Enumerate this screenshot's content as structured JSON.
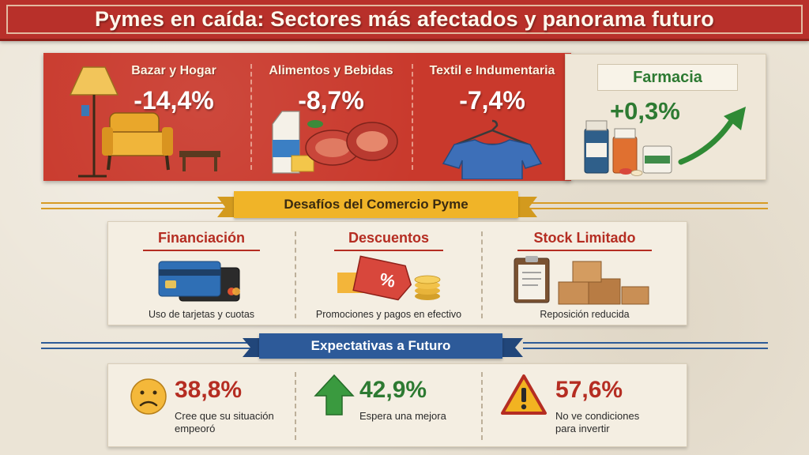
{
  "title": "Pymes en caída: Sectores más afectados y panorama futuro",
  "colors": {
    "brand_red": "#b8302a",
    "decline_text": "#ffffff",
    "growth_green": "#2d7a32",
    "ribbon_gold": "#f0b428",
    "ribbon_blue": "#2d5a99"
  },
  "sectors": [
    {
      "label": "Bazar y Hogar",
      "value": "-14,4%",
      "icon": "armchair-lamp-icon"
    },
    {
      "label": "Alimentos y Bebidas",
      "value": "-8,7%",
      "icon": "milk-meat-icon"
    },
    {
      "label": "Textil e Indumentaria",
      "value": "-7,4%",
      "icon": "tshirt-hanger-icon"
    }
  ],
  "pharmacy": {
    "label": "Farmacia",
    "value": "+0,3%",
    "icon": "medicine-bottles-icon",
    "trend_icon": "arrow-up-icon"
  },
  "challenges": {
    "heading": "Desafíos del Comercio Pyme",
    "items": [
      {
        "title": "Financiación",
        "desc": "Uso de tarjetas y cuotas",
        "icon": "credit-cards-icon"
      },
      {
        "title": "Descuentos",
        "desc": "Promociones y pagos en efectivo",
        "icon": "discount-tag-icon"
      },
      {
        "title": "Stock Limitado",
        "desc": "Reposición reducida",
        "icon": "boxes-clipboard-icon"
      }
    ]
  },
  "expectations": {
    "heading": "Expectativas a Futuro",
    "items": [
      {
        "value": "38,8%",
        "desc": "Cree que su situación empeoró",
        "icon": "sad-face-icon",
        "color": "#b52d22"
      },
      {
        "value": "42,9%",
        "desc": "Espera una mejora",
        "icon": "green-arrow-up-icon",
        "color": "#2d7a32"
      },
      {
        "value": "57,6%",
        "desc": "No ve condiciones para invertir",
        "icon": "warning-icon",
        "color": "#b52d22"
      }
    ]
  }
}
